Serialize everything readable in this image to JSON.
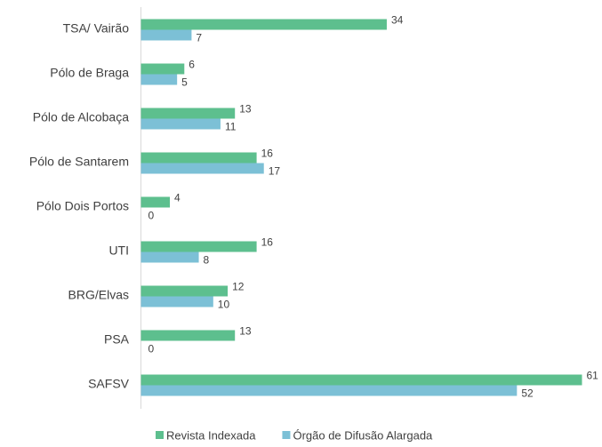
{
  "chart_data": {
    "type": "bar",
    "orientation": "horizontal",
    "categories": [
      "TSA/ Vairão",
      "Pólo de Braga",
      "Pólo de Alcobaça",
      "Pólo de Santarem",
      "Pólo Dois Portos",
      "UTI",
      "BRG/Elvas",
      "PSA",
      "SAFSV"
    ],
    "series": [
      {
        "name": "Revista Indexada",
        "color": "#5dbf8e",
        "values": [
          34,
          6,
          13,
          16,
          4,
          16,
          12,
          13,
          61
        ]
      },
      {
        "name": "Órgão de Difusão Alargada",
        "color": "#7cc0d6",
        "values": [
          7,
          5,
          11,
          17,
          0,
          8,
          10,
          0,
          52
        ]
      }
    ],
    "legend": "bottom"
  }
}
